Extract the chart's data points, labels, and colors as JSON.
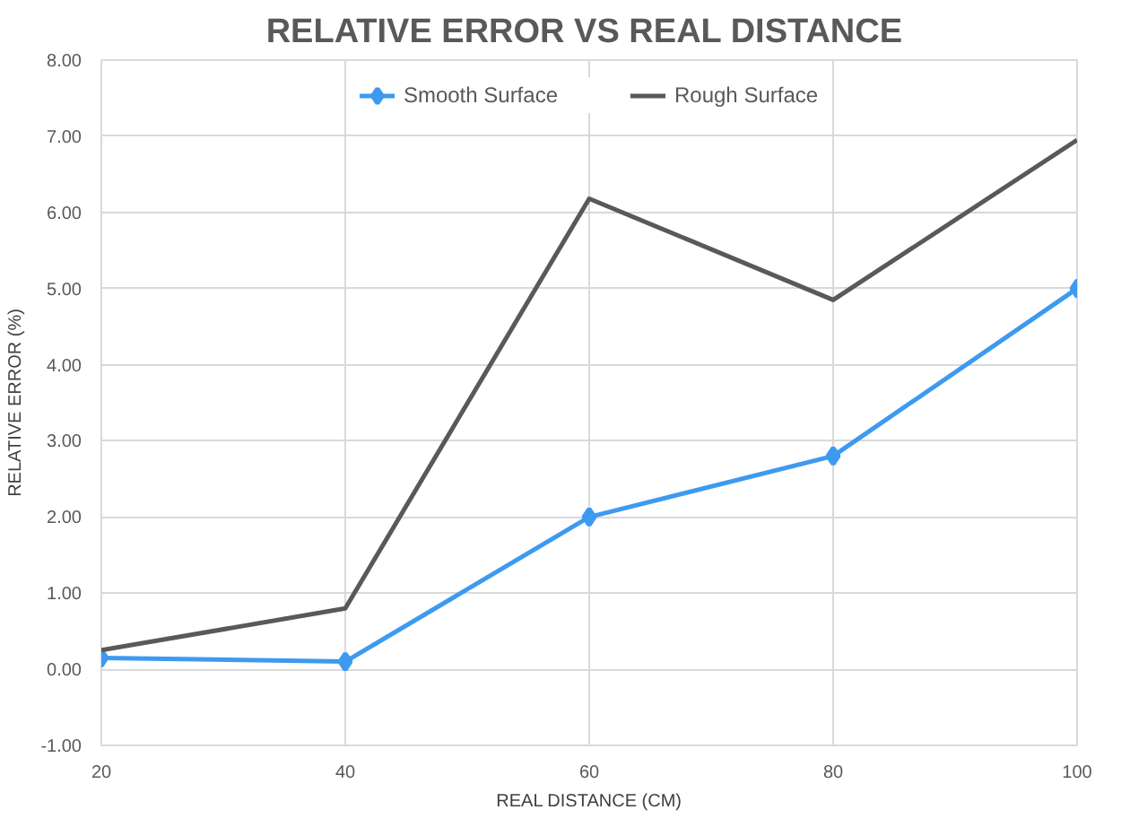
{
  "chart_data": {
    "type": "line",
    "title": "RELATIVE  ERROR VS REAL DISTANCE",
    "xlabel": "REAL DISTANCE (CM)",
    "ylabel": "RELATIVE ERROR (%)",
    "x": [
      20,
      40,
      60,
      80,
      100
    ],
    "series": [
      {
        "name": "Smooth Surface",
        "color": "#3d9af0",
        "marker": "diamond",
        "values": [
          0.15,
          0.1,
          2.0,
          2.8,
          5.0
        ]
      },
      {
        "name": "Rough Surface",
        "color": "#595959",
        "marker": "none",
        "values": [
          0.25,
          0.8,
          6.18,
          4.85,
          6.95
        ]
      }
    ],
    "xlim": [
      20,
      100
    ],
    "ylim": [
      -1,
      8
    ],
    "xticks": [
      20,
      40,
      60,
      80,
      100
    ],
    "yticks": [
      {
        "value": -1,
        "label": "-1.00"
      },
      {
        "value": 0,
        "label": "0.00"
      },
      {
        "value": 1,
        "label": "1.00"
      },
      {
        "value": 2,
        "label": "2.00"
      },
      {
        "value": 3,
        "label": "3.00"
      },
      {
        "value": 4,
        "label": "4.00"
      },
      {
        "value": 5,
        "label": "5.00"
      },
      {
        "value": 6,
        "label": "6.00"
      },
      {
        "value": 7,
        "label": "7.00"
      },
      {
        "value": 8,
        "label": "8.00"
      }
    ],
    "grid": true,
    "legend": "top",
    "line_style": "solid"
  }
}
